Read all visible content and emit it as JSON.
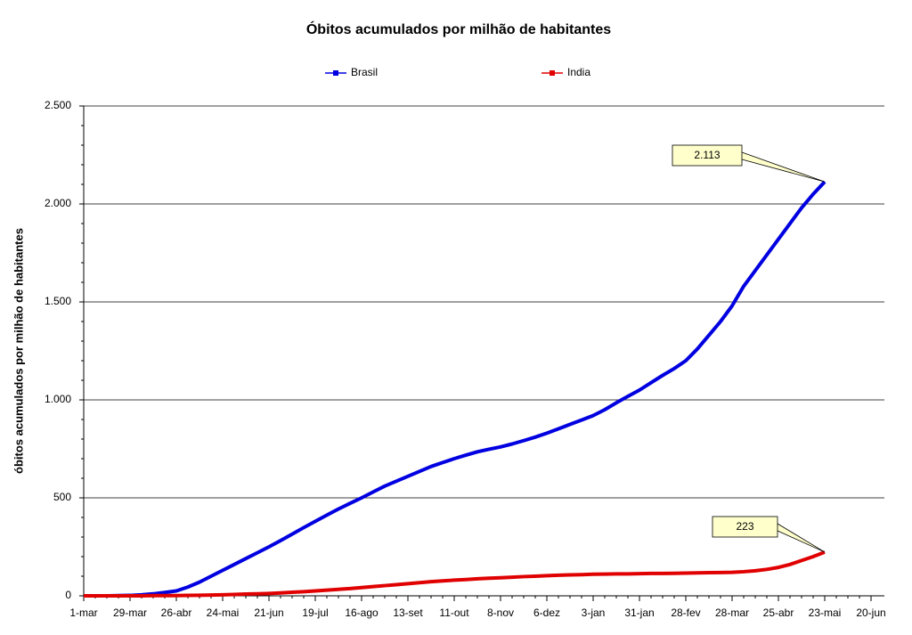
{
  "chart_data": {
    "type": "line",
    "title": "Óbitos acumulados por milhão de habitantes",
    "y_label": "óbitos acumulados por milhão de habitantes",
    "categories": [
      "1-mar",
      null,
      null,
      null,
      "29-mar",
      null,
      null,
      null,
      "26-abr",
      null,
      null,
      null,
      "24-mai",
      null,
      null,
      null,
      "21-jun",
      null,
      null,
      null,
      "19-jul",
      null,
      null,
      null,
      "16-ago",
      null,
      null,
      null,
      "13-set",
      null,
      null,
      null,
      "11-out",
      null,
      null,
      null,
      "8-nov",
      null,
      null,
      null,
      "6-dez",
      null,
      null,
      null,
      "3-jan",
      null,
      null,
      null,
      "31-jan",
      null,
      null,
      null,
      "28-fev",
      null,
      null,
      null,
      "28-mar",
      null,
      null,
      null,
      "25-abr",
      null,
      null,
      null,
      "23-mai",
      null,
      null,
      null,
      "20-jun"
    ],
    "series": [
      {
        "name": "Brasil",
        "color": "#0000e0",
        "values": [
          0,
          0,
          0,
          1,
          2,
          5,
          10,
          17,
          25,
          45,
          70,
          100,
          130,
          160,
          190,
          220,
          250,
          282,
          315,
          348,
          380,
          412,
          443,
          472,
          500,
          530,
          560,
          585,
          610,
          635,
          660,
          680,
          700,
          718,
          735,
          748,
          760,
          775,
          792,
          810,
          830,
          852,
          875,
          897,
          920,
          950,
          985,
          1018,
          1050,
          1088,
          1125,
          1160,
          1200,
          1260,
          1330,
          1400,
          1480,
          1580,
          1660,
          1740,
          1820,
          1900,
          1980,
          2050,
          2113,
          null,
          null,
          null,
          null
        ]
      },
      {
        "name": "India",
        "color": "#e00000",
        "values": [
          0,
          0,
          0,
          0,
          0,
          0,
          1,
          1,
          1,
          2,
          3,
          4,
          5,
          7,
          9,
          10,
          12,
          15,
          18,
          21,
          25,
          29,
          33,
          37,
          42,
          47,
          52,
          57,
          62,
          67,
          72,
          76,
          80,
          83,
          87,
          90,
          92,
          95,
          98,
          100,
          103,
          105,
          107,
          108,
          110,
          111,
          112,
          112,
          113,
          114,
          114,
          115,
          116,
          117,
          118,
          119,
          120,
          123,
          128,
          135,
          145,
          160,
          180,
          200,
          223,
          null,
          null,
          null,
          null
        ]
      }
    ],
    "annotations": [
      "2.113",
      "223"
    ],
    "ylim": [
      0,
      2500
    ],
    "yticks": [
      0,
      500,
      {
        "value": 1000,
        "label": "1.000"
      },
      {
        "value": 1500,
        "label": "1.500"
      },
      {
        "value": 2000,
        "label": "2.000"
      },
      {
        "value": 2500,
        "label": "2.500"
      }
    ],
    "grid": true,
    "legend": "top"
  }
}
